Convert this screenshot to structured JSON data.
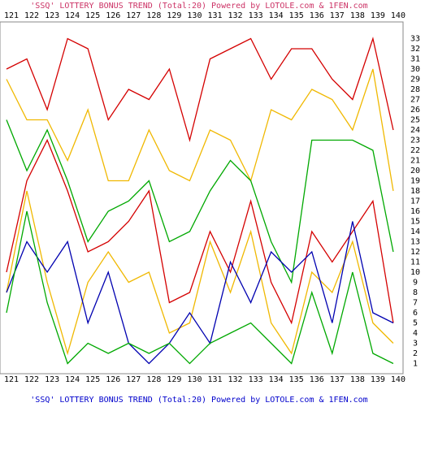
{
  "chart_data": {
    "type": "line",
    "title": "'SSQ' LOTTERY BONUS TREND (Total:20)  Powered by LOTOLE.com & 1FEN.com",
    "categories": [
      "121",
      "122",
      "123",
      "124",
      "125",
      "126",
      "127",
      "128",
      "129",
      "130",
      "131",
      "132",
      "133",
      "134",
      "135",
      "136",
      "137",
      "138",
      "139",
      "140"
    ],
    "series": [
      {
        "color": "#d40000",
        "values": [
          30,
          31,
          26,
          33,
          32,
          25,
          28,
          27,
          30,
          23,
          31,
          32,
          33,
          29,
          32,
          32,
          29,
          27,
          33,
          24
        ]
      },
      {
        "color": "#f0b800",
        "values": [
          29,
          25,
          25,
          21,
          26,
          19,
          19,
          24,
          20,
          19,
          24,
          23,
          19,
          26,
          25,
          28,
          27,
          24,
          30,
          18
        ]
      },
      {
        "color": "#00a800",
        "values": [
          25,
          20,
          24,
          19,
          13,
          16,
          17,
          19,
          13,
          14,
          18,
          21,
          19,
          13,
          9,
          23,
          23,
          23,
          22,
          12
        ]
      },
      {
        "color": "#d40000",
        "values": [
          10,
          19,
          23,
          18,
          12,
          13,
          15,
          18,
          7,
          8,
          14,
          10,
          17,
          9,
          5,
          14,
          11,
          14,
          17,
          5
        ]
      },
      {
        "color": "#f0b800",
        "values": [
          8,
          18,
          9,
          2,
          9,
          12,
          9,
          10,
          4,
          5,
          13,
          8,
          14,
          5,
          2,
          10,
          8,
          13,
          5,
          3
        ]
      },
      {
        "color": "#0000b0",
        "values": [
          8,
          13,
          10,
          13,
          5,
          10,
          3,
          1,
          3,
          6,
          3,
          11,
          7,
          12,
          10,
          12,
          5,
          15,
          6,
          5
        ]
      },
      {
        "color": "#00a800",
        "values": [
          6,
          16,
          7,
          1,
          3,
          2,
          3,
          2,
          3,
          1,
          3,
          4,
          5,
          3,
          1,
          8,
          2,
          10,
          2,
          1
        ]
      }
    ],
    "ylim": [
      0,
      34
    ],
    "yticks": [
      1,
      2,
      3,
      4,
      5,
      6,
      7,
      8,
      9,
      10,
      11,
      12,
      13,
      14,
      15,
      16,
      17,
      18,
      19,
      20,
      21,
      22,
      23,
      24,
      25,
      26,
      27,
      28,
      29,
      30,
      31,
      32,
      33
    ]
  }
}
